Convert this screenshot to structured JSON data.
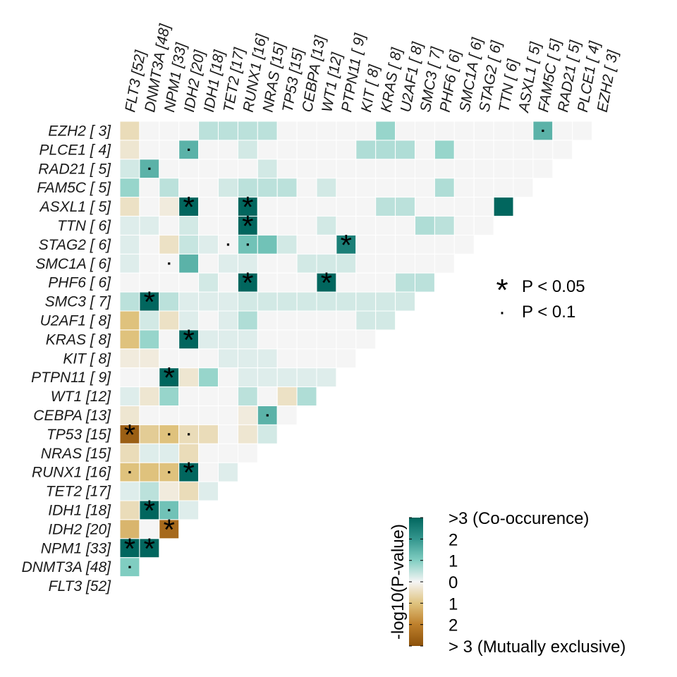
{
  "chart_data": {
    "type": "heatmap",
    "title": "",
    "genes": [
      "FLT3",
      "DNMT3A",
      "NPM1",
      "IDH2",
      "IDH1",
      "TET2",
      "RUNX1",
      "NRAS",
      "TP53",
      "CEBPA",
      "WT1",
      "PTPN11",
      "KIT",
      "KRAS",
      "U2AF1",
      "SMC3",
      "PHF6",
      "SMC1A",
      "STAG2",
      "TTN",
      "ASXL1",
      "FAM5C",
      "RAD21",
      "PLCE1",
      "EZH2"
    ],
    "column_labels": [
      "FLT3 [52]",
      "DNMT3A [48]",
      "NPM1 [33]",
      "IDH2 [20]",
      "IDH1 [18]",
      "TET2 [17]",
      "RUNX1 [16]",
      "NRAS [15]",
      "TP53 [15]",
      "CEBPA [13]",
      "WT1 [12]",
      "PTPN11 [ 9]",
      "KIT [ 8]",
      "KRAS [ 8]",
      "U2AF1 [ 8]",
      "SMC3 [ 7]",
      "PHF6 [ 6]",
      "SMC1A [ 6]",
      "STAG2 [ 6]",
      "TTN [ 6]",
      "ASXL1 [ 5]",
      "FAM5C [ 5]",
      "RAD21 [ 5]",
      "PLCE1 [ 4]",
      "EZH2 [ 3]"
    ],
    "row_labels": [
      "EZH2 [ 3]",
      "PLCE1 [ 4]",
      "RAD21 [ 5]",
      "FAM5C [ 5]",
      "ASXL1 [ 5]",
      "TTN [ 6]",
      "STAG2 [ 6]",
      "SMC1A [ 6]",
      "PHF6 [ 6]",
      "SMC3 [ 7]",
      "U2AF1 [ 8]",
      "KRAS [ 8]",
      "KIT [ 8]",
      "PTPN11 [ 9]",
      "WT1 [12]",
      "CEBPA [13]",
      "TP53 [15]",
      "NRAS [15]",
      "RUNX1 [16]",
      "TET2 [17]",
      "IDH1 [18]",
      "IDH2 [20]",
      "NPM1 [33]",
      "DNMT3A [48]",
      "FLT3 [52]"
    ],
    "value_description": "signed -log10(P-value): positive = co-occurrence, negative = mutual exclusivity, capped at +/-3",
    "values": [
      [
        -0.5,
        0,
        0,
        0,
        0.5,
        0.5,
        0.5,
        0.5,
        0,
        0,
        0,
        0,
        0,
        0.8,
        0,
        0,
        0,
        0,
        0,
        0,
        0,
        1.5,
        0,
        0
      ],
      [
        -0.3,
        0,
        0,
        1.5,
        0,
        0,
        0.3,
        0,
        0,
        0,
        0,
        0,
        0.6,
        0.6,
        0.6,
        0,
        0.8,
        0,
        0,
        0,
        0,
        0,
        0
      ],
      [
        0.3,
        1.5,
        0,
        0,
        0,
        0,
        0,
        0.3,
        0,
        0,
        0,
        0,
        0,
        0,
        0,
        0,
        0,
        0,
        0,
        0,
        0,
        0
      ],
      [
        0.8,
        0,
        0.5,
        0,
        0,
        0.3,
        0.5,
        0.5,
        0.5,
        0,
        0.3,
        0,
        0,
        0,
        0,
        0,
        0.6,
        0,
        0,
        0,
        0
      ],
      [
        -0.4,
        0,
        -0.2,
        3,
        0,
        0,
        3,
        0,
        0,
        0,
        0,
        0,
        0,
        0.5,
        0.5,
        0,
        0,
        0,
        0,
        3
      ],
      [
        0.2,
        0.2,
        0,
        0.3,
        0,
        0,
        3,
        0,
        0,
        0,
        0.3,
        0,
        0,
        0,
        0,
        0.6,
        0.5,
        0,
        0
      ],
      [
        0.2,
        0,
        -0.4,
        0.4,
        0.2,
        0,
        1.2,
        1.2,
        0.3,
        0,
        0,
        2.5,
        0,
        0,
        0,
        0,
        0,
        0
      ],
      [
        0.2,
        0,
        0,
        1.5,
        0,
        0.2,
        0.2,
        0,
        0,
        0.3,
        0.3,
        0.3,
        0,
        0,
        0,
        0,
        0
      ],
      [
        0,
        0,
        0,
        0,
        0.3,
        0,
        3,
        0,
        0,
        0,
        3,
        0,
        0,
        0,
        0.5,
        0.5
      ],
      [
        0.5,
        3,
        0.5,
        0.2,
        0.2,
        0.2,
        0.3,
        0.3,
        0.3,
        0.3,
        0.3,
        0.3,
        0.3,
        0.3,
        0.3
      ],
      [
        -1,
        0.3,
        -0.4,
        0.2,
        0,
        0.2,
        0.6,
        0,
        0,
        0,
        0,
        0,
        0.3,
        0.3
      ],
      [
        -1,
        0.8,
        0,
        3,
        0.2,
        0.2,
        0.2,
        0,
        0,
        0,
        0,
        0,
        0
      ],
      [
        -0.2,
        -0.2,
        0,
        0,
        0,
        0.2,
        0.2,
        0.2,
        0,
        0,
        0,
        0
      ],
      [
        0,
        0,
        3,
        -0.3,
        0.8,
        0,
        0.2,
        0.2,
        0.2,
        0.2,
        0.2
      ],
      [
        0.2,
        -0.3,
        0.8,
        0,
        0,
        0,
        0.5,
        0,
        -0.4,
        0.6
      ],
      [
        -0.3,
        0,
        0,
        0,
        0,
        0,
        -0.2,
        1.5,
        0
      ],
      [
        -2.7,
        -0.8,
        -1,
        -0.5,
        -0.5,
        0,
        -0.3,
        0.3
      ],
      [
        -0.5,
        0.2,
        0.2,
        -0.5,
        0,
        0,
        0
      ],
      [
        -1,
        -1,
        -1,
        3,
        0,
        0.2
      ],
      [
        0.2,
        0.5,
        -0.2,
        -0.5,
        0.2
      ],
      [
        -0.5,
        3,
        1.2,
        0.2
      ],
      [
        -1.2,
        0,
        -2.5
      ],
      [
        3,
        3
      ],
      [
        1
      ]
    ],
    "significance": [
      [
        "",
        "",
        "",
        "",
        "",
        "",
        "",
        "",
        "",
        "",
        "",
        "",
        "",
        "",
        "",
        "",
        "",
        "",
        "",
        "",
        "",
        "dot",
        "",
        "",
        ""
      ],
      [
        "",
        "",
        "",
        "dot",
        "",
        "",
        "",
        "",
        "",
        "",
        "",
        "",
        "",
        "",
        "",
        "",
        "",
        "",
        "",
        "",
        "",
        "",
        "",
        ""
      ],
      [
        "",
        "dot",
        "",
        "",
        "",
        "",
        "",
        "",
        "",
        "",
        "",
        "",
        "",
        "",
        "",
        "",
        "",
        "",
        "",
        "",
        "",
        "",
        ""
      ],
      [
        "",
        "",
        "",
        "",
        "",
        "",
        "",
        "",
        "",
        "",
        "",
        "",
        "",
        "",
        "",
        "",
        "",
        "",
        "",
        "",
        "",
        ""
      ],
      [
        "",
        "",
        "",
        "star",
        "",
        "",
        "star",
        "",
        "",
        "",
        "",
        "",
        "",
        "",
        "",
        "",
        "",
        "",
        "",
        "",
        "star"
      ],
      [
        "",
        "",
        "",
        "",
        "",
        "",
        "star",
        "",
        "",
        "",
        "",
        "",
        "",
        "",
        "",
        "",
        "",
        "",
        "",
        "",
        ""
      ],
      [
        "",
        "",
        "",
        "",
        "",
        "dot",
        "dot",
        "",
        "",
        "",
        "",
        "star",
        "",
        "",
        "",
        "",
        "",
        "",
        ""
      ],
      [
        "",
        "",
        "dot",
        "",
        "",
        "",
        "",
        "",
        "",
        "",
        "",
        "",
        "",
        "",
        "",
        "",
        "",
        "",
        ""
      ],
      [
        "",
        "",
        "",
        "",
        "",
        "",
        "star",
        "",
        "",
        "",
        "star",
        "",
        "",
        "",
        "",
        "",
        ""
      ],
      [
        "",
        "star",
        "",
        "",
        "",
        "",
        "",
        "",
        "",
        "",
        "",
        "",
        "",
        "",
        "",
        ""
      ],
      [
        "",
        "",
        "",
        "",
        "",
        "",
        "",
        "",
        "",
        "",
        "",
        "",
        "",
        "",
        ""
      ],
      [
        "",
        "",
        "",
        "star",
        "",
        "",
        "",
        "",
        "",
        "",
        "",
        "",
        "",
        ""
      ],
      [
        "",
        "",
        "",
        "",
        "",
        "",
        "",
        "",
        "",
        "",
        "",
        "",
        ""
      ],
      [
        "",
        "",
        "star",
        "",
        "",
        "",
        "",
        "",
        "",
        "",
        "",
        ""
      ],
      [
        "",
        "",
        "",
        "",
        "",
        "",
        "",
        "",
        "",
        "",
        ""
      ],
      [
        "",
        "",
        "",
        "",
        "",
        "",
        "",
        "dot",
        "",
        ""
      ],
      [
        "star",
        "",
        "dot",
        "dot",
        "",
        "",
        "",
        "",
        ""
      ],
      [
        "",
        "",
        "",
        "",
        "",
        "",
        "",
        ""
      ],
      [
        "dot",
        "",
        "dot",
        "star",
        "",
        "",
        ""
      ],
      [
        "",
        "",
        "",
        "",
        "",
        ""
      ],
      [
        "",
        "star",
        "dot",
        "",
        ""
      ],
      [
        "",
        "",
        "star",
        ""
      ],
      [
        "star",
        "star",
        ""
      ],
      [
        "dot",
        ""
      ],
      [
        ""
      ]
    ],
    "legend": {
      "p005_label": "P < 0.05",
      "p01_label": "P < 0.1",
      "star_symbol": "*",
      "dot_symbol": "·"
    },
    "colorbar": {
      "title": "-log10(P-value)",
      "range": [
        -3,
        3
      ],
      "tick_labels": [
        ">3 (Co-occurence)",
        "2",
        "1",
        "0",
        "1",
        "2",
        "> 3 (Mutually exclusive)"
      ],
      "colors": {
        "co_occurrence_max": "#01665e",
        "neutral": "#f5f5f5",
        "exclusive_max": "#8c510a"
      }
    }
  }
}
